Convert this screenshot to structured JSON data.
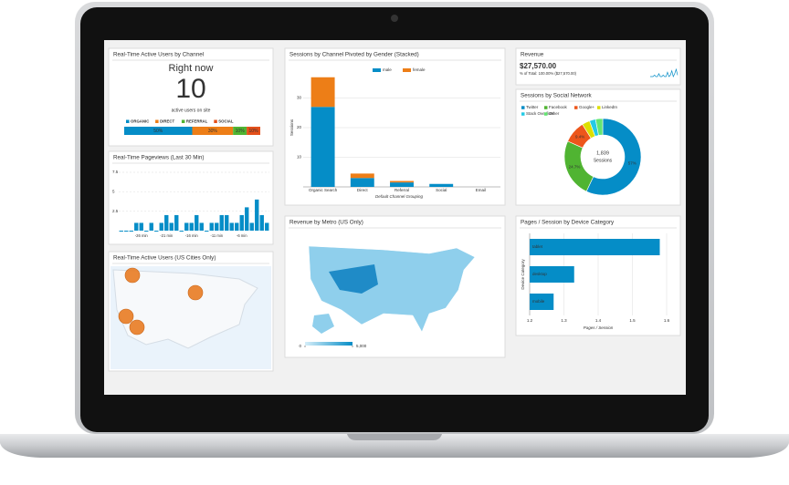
{
  "channel_widget": {
    "title": "Real-Time Active Users by Channel",
    "heading": "Right now",
    "active_users": 10,
    "caption": "active users on site",
    "channels": [
      "ORGANIC",
      "DIRECT",
      "REFERRAL",
      "SOCIAL"
    ],
    "colors": [
      "#058dc7",
      "#ed7e17",
      "#50b432",
      "#e4501a"
    ],
    "values": [
      50,
      30,
      10,
      10
    ],
    "value_labels": [
      "50%",
      "30%",
      "10%",
      "10%"
    ]
  },
  "pageviews_widget": {
    "type": "bar",
    "title": "Real-Time Pageviews (Last 30 Min)",
    "categories": [
      null,
      null,
      null,
      null,
      "-26 min",
      null,
      null,
      null,
      null,
      "-21 min",
      null,
      null,
      null,
      null,
      "-16 min",
      null,
      null,
      null,
      null,
      "-11 min",
      null,
      null,
      null,
      null,
      "-6 min",
      null,
      null,
      null,
      null,
      null
    ],
    "values": [
      0,
      0,
      0,
      1,
      1,
      0,
      1,
      0,
      1,
      2,
      1,
      2,
      0,
      1,
      1,
      2,
      1,
      0,
      1,
      1,
      2,
      2,
      1,
      1,
      2,
      3,
      1,
      4,
      2,
      1
    ],
    "color": "#058dc7",
    "ylim": [
      0,
      7.5
    ],
    "yticks": [
      2.5,
      5,
      7.5
    ],
    "grid": true
  },
  "cities_widget": {
    "title": "Real-Time Active Users (US Cities Only)"
  },
  "stacked_widget": {
    "type": "bar",
    "stacked": true,
    "title": "Sessions by Channel Pivoted by Gender (Stacked)",
    "categories": [
      "Organic Search",
      "Direct",
      "Referral",
      "Social",
      "Email"
    ],
    "series": [
      {
        "name": "male",
        "color": "#058dc7",
        "values": [
          27,
          3,
          1.5,
          1,
          0
        ]
      },
      {
        "name": "female",
        "color": "#ed7e17",
        "values": [
          10,
          1.5,
          0.5,
          0,
          0
        ]
      }
    ],
    "ylim": [
      0,
      40
    ],
    "yticks": [
      10,
      20,
      30
    ],
    "xlabel": "Default Channel Grouping",
    "ylabel": "Sessions",
    "grid": true
  },
  "metro_widget": {
    "title": "Revenue by Metro (US Only)",
    "scale_ticks": [
      0,
      {
        "value": 5000,
        "label": "5,000"
      }
    ]
  },
  "revenue_widget": {
    "type": "line",
    "title": "Revenue",
    "total": "$27,570.00",
    "total_note": "% of Total: 100.00% ($27,570.00)",
    "values": [
      0,
      0,
      0,
      1,
      0,
      0,
      2,
      0,
      0,
      1,
      0,
      0,
      3,
      0,
      1,
      4,
      0,
      2,
      5,
      1
    ]
  },
  "social_widget": {
    "type": "pie",
    "title": "Sessions by Social Network",
    "total": "1,839",
    "total_label": "Sessions",
    "categories": [
      "Twitter",
      "Facebook",
      "Google+",
      "LinkedIn",
      "Stack Overflow",
      "Other"
    ],
    "colors": [
      "#058dc7",
      "#50b432",
      "#ed561b",
      "#dddf00",
      "#24cbe5",
      "#64e572"
    ],
    "values": [
      57,
      24.7,
      9.4,
      3.3,
      2.6,
      3
    ],
    "value_labels": [
      "57%",
      "24.7%",
      "9.4%",
      null,
      null,
      null
    ]
  },
  "device_widget": {
    "type": "bar",
    "orientation": "horizontal",
    "title": "Pages / Session by Device Category",
    "categories": [
      "tablet",
      "desktop",
      "mobile"
    ],
    "values": [
      1.58,
      1.33,
      1.27
    ],
    "color": "#058dc7",
    "xlim": [
      1.2,
      1.6
    ],
    "xticks": [
      1.2,
      1.3,
      1.4,
      1.5,
      1.6
    ],
    "xlabel": "Pages / Session",
    "ylabel": "Device Category",
    "grid": true
  }
}
